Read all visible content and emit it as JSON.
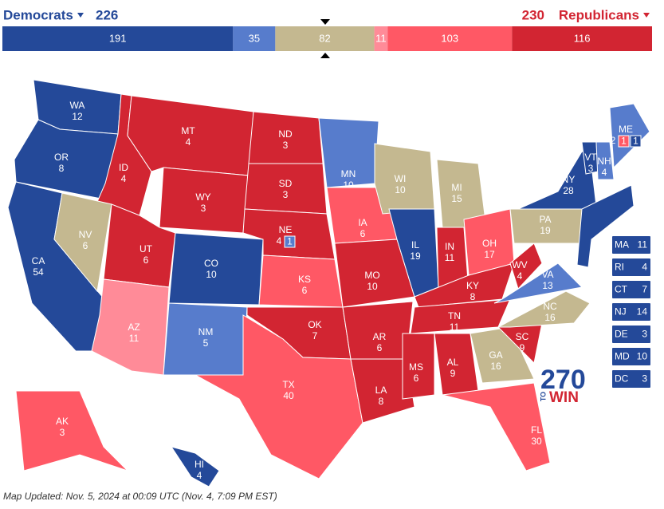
{
  "header": {
    "democrats": {
      "label": "Democrats",
      "total": 226,
      "color": "#244999"
    },
    "republicans": {
      "label": "Republicans",
      "total": 230,
      "color": "#d22532"
    }
  },
  "bar": [
    {
      "value": 191,
      "color": "#244999"
    },
    {
      "value": 35,
      "color": "#577ccc"
    },
    {
      "value": 82,
      "color": "#c4b890"
    },
    {
      "value": 11,
      "color": "#ff8b98"
    },
    {
      "value": 103,
      "color": "#ff5865"
    },
    {
      "value": 116,
      "color": "#d22532"
    }
  ],
  "states": [
    {
      "abbr": "WA",
      "ev": 12,
      "color": "#244999"
    },
    {
      "abbr": "OR",
      "ev": 8,
      "color": "#244999"
    },
    {
      "abbr": "CA",
      "ev": 54,
      "color": "#244999"
    },
    {
      "abbr": "ID",
      "ev": 4,
      "color": "#d22532"
    },
    {
      "abbr": "NV",
      "ev": 6,
      "color": "#c4b890"
    },
    {
      "abbr": "MT",
      "ev": 4,
      "color": "#d22532"
    },
    {
      "abbr": "WY",
      "ev": 3,
      "color": "#d22532"
    },
    {
      "abbr": "UT",
      "ev": 6,
      "color": "#d22532"
    },
    {
      "abbr": "AZ",
      "ev": 11,
      "color": "#ff8b98"
    },
    {
      "abbr": "CO",
      "ev": 10,
      "color": "#244999"
    },
    {
      "abbr": "NM",
      "ev": 5,
      "color": "#577ccc"
    },
    {
      "abbr": "ND",
      "ev": 3,
      "color": "#d22532"
    },
    {
      "abbr": "SD",
      "ev": 3,
      "color": "#d22532"
    },
    {
      "abbr": "NE",
      "ev": 4,
      "color": "#d22532",
      "districts": [
        {
          "value": 1,
          "color": "#577ccc"
        }
      ]
    },
    {
      "abbr": "KS",
      "ev": 6,
      "color": "#ff5865"
    },
    {
      "abbr": "OK",
      "ev": 7,
      "color": "#d22532"
    },
    {
      "abbr": "TX",
      "ev": 40,
      "color": "#ff5865"
    },
    {
      "abbr": "MN",
      "ev": 10,
      "color": "#577ccc"
    },
    {
      "abbr": "IA",
      "ev": 6,
      "color": "#ff5865"
    },
    {
      "abbr": "MO",
      "ev": 10,
      "color": "#d22532"
    },
    {
      "abbr": "AR",
      "ev": 6,
      "color": "#d22532"
    },
    {
      "abbr": "LA",
      "ev": 8,
      "color": "#d22532"
    },
    {
      "abbr": "WI",
      "ev": 10,
      "color": "#c4b890"
    },
    {
      "abbr": "IL",
      "ev": 19,
      "color": "#244999"
    },
    {
      "abbr": "MI",
      "ev": 15,
      "color": "#c4b890"
    },
    {
      "abbr": "IN",
      "ev": 11,
      "color": "#d22532"
    },
    {
      "abbr": "OH",
      "ev": 17,
      "color": "#ff5865"
    },
    {
      "abbr": "KY",
      "ev": 8,
      "color": "#d22532"
    },
    {
      "abbr": "TN",
      "ev": 11,
      "color": "#d22532"
    },
    {
      "abbr": "MS",
      "ev": 6,
      "color": "#d22532"
    },
    {
      "abbr": "AL",
      "ev": 9,
      "color": "#d22532"
    },
    {
      "abbr": "GA",
      "ev": 16,
      "color": "#c4b890"
    },
    {
      "abbr": "FL",
      "ev": 30,
      "color": "#ff5865"
    },
    {
      "abbr": "SC",
      "ev": 9,
      "color": "#d22532"
    },
    {
      "abbr": "NC",
      "ev": 16,
      "color": "#c4b890"
    },
    {
      "abbr": "VA",
      "ev": 13,
      "color": "#577ccc"
    },
    {
      "abbr": "WV",
      "ev": 4,
      "color": "#d22532"
    },
    {
      "abbr": "PA",
      "ev": 19,
      "color": "#c4b890"
    },
    {
      "abbr": "NY",
      "ev": 28,
      "color": "#244999"
    },
    {
      "abbr": "VT",
      "ev": 3,
      "color": "#244999"
    },
    {
      "abbr": "NH",
      "ev": 4,
      "color": "#577ccc"
    },
    {
      "abbr": "ME",
      "ev": 2,
      "color": "#577ccc",
      "districts": [
        {
          "value": 1,
          "color": "#ff5865"
        },
        {
          "value": 1,
          "color": "#244999"
        }
      ]
    },
    {
      "abbr": "AK",
      "ev": 3,
      "color": "#ff5865"
    },
    {
      "abbr": "HI",
      "ev": 4,
      "color": "#244999"
    }
  ],
  "small_states": [
    {
      "abbr": "MA",
      "ev": 11,
      "color": "#244999"
    },
    {
      "abbr": "RI",
      "ev": 4,
      "color": "#244999"
    },
    {
      "abbr": "CT",
      "ev": 7,
      "color": "#244999"
    },
    {
      "abbr": "NJ",
      "ev": 14,
      "color": "#244999"
    },
    {
      "abbr": "DE",
      "ev": 3,
      "color": "#244999"
    },
    {
      "abbr": "MD",
      "ev": 10,
      "color": "#244999"
    },
    {
      "abbr": "DC",
      "ev": 3,
      "color": "#244999"
    }
  ],
  "logo": {
    "number": "270",
    "to": "TO",
    "win": "WIN"
  },
  "footer": "Map Updated: Nov. 5, 2024 at 00:09 UTC (Nov. 4, 7:09 PM EST)"
}
